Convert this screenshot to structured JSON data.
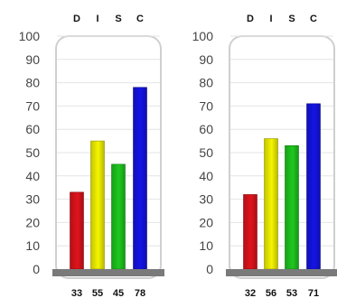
{
  "chart_data": [
    {
      "type": "bar",
      "categories": [
        "D",
        "I",
        "S",
        "C"
      ],
      "values": [
        33,
        55,
        45,
        78
      ],
      "ylim": [
        0,
        100
      ],
      "yticks": [
        0,
        10,
        20,
        30,
        40,
        50,
        60,
        70,
        80,
        90,
        100
      ],
      "grid": true,
      "colors": [
        "#e0141c",
        "#f5f500",
        "#1ec81e",
        "#1414e6"
      ]
    },
    {
      "type": "bar",
      "categories": [
        "D",
        "I",
        "S",
        "C"
      ],
      "values": [
        32,
        56,
        53,
        71
      ],
      "ylim": [
        0,
        100
      ],
      "yticks": [
        0,
        10,
        20,
        30,
        40,
        50,
        60,
        70,
        80,
        90,
        100
      ],
      "grid": true,
      "colors": [
        "#e0141c",
        "#f5f500",
        "#1ec81e",
        "#1414e6"
      ]
    }
  ]
}
